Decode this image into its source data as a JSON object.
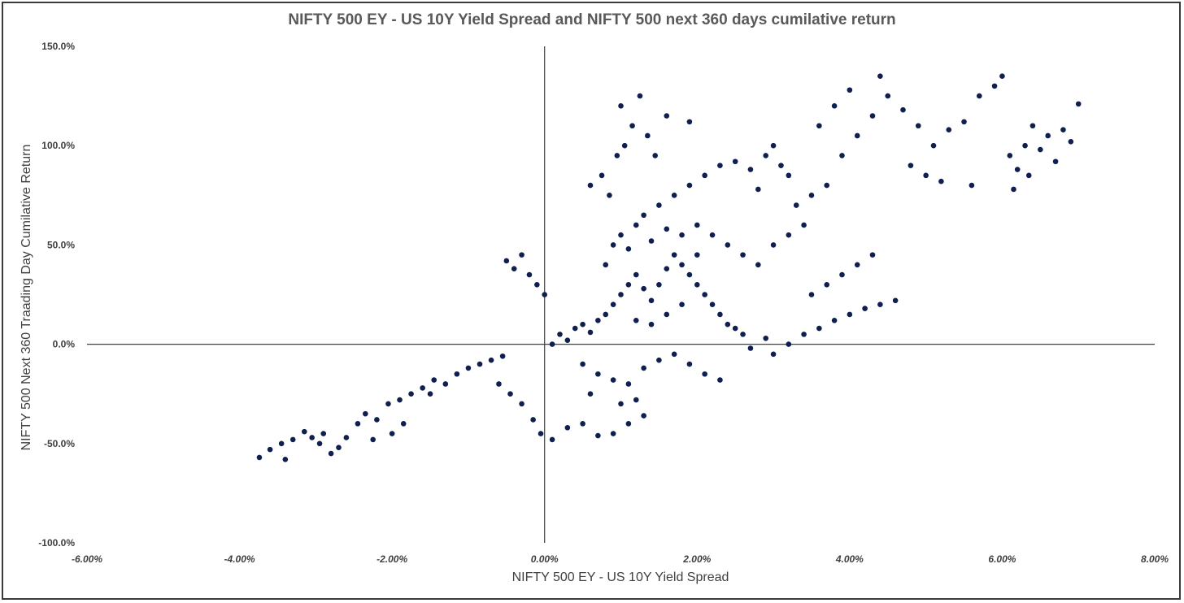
{
  "chart_data": {
    "type": "scatter",
    "title": "NIFTY 500 EY - US 10Y Yield Spread and NIFTY 500 next 360 days cumilative return",
    "xlabel": "NIFTY 500 EY - US 10Y Yield Spread",
    "ylabel": "NIFTY 500 Next 360 Traading Day Cumilative Return",
    "xlim": [
      -6,
      8
    ],
    "ylim": [
      -100,
      150
    ],
    "x_ticks": [
      "-6.00%",
      "-4.00%",
      "-2.00%",
      "0.00%",
      "2.00%",
      "4.00%",
      "6.00%",
      "8.00%"
    ],
    "y_ticks": [
      "150.0%",
      "100.0%",
      "50.0%",
      "0.0%",
      "-50.0%",
      "-100.0%"
    ],
    "grid": false,
    "legend": "none",
    "marker_color": "#0f1f4f",
    "series": [
      {
        "points": [
          [
            -3.74,
            -57
          ],
          [
            -3.6,
            -53
          ],
          [
            -3.45,
            -50
          ],
          [
            -3.3,
            -48
          ],
          [
            -3.15,
            -44
          ],
          [
            -3.05,
            -47
          ],
          [
            -2.95,
            -50
          ],
          [
            -2.8,
            -55
          ],
          [
            -2.7,
            -52
          ],
          [
            -2.6,
            -47
          ],
          [
            -2.45,
            -40
          ],
          [
            -2.35,
            -35
          ],
          [
            -2.2,
            -38
          ],
          [
            -2.05,
            -30
          ],
          [
            -1.9,
            -28
          ],
          [
            -1.75,
            -25
          ],
          [
            -1.6,
            -22
          ],
          [
            -1.45,
            -18
          ],
          [
            -1.3,
            -20
          ],
          [
            -1.15,
            -15
          ],
          [
            -1.0,
            -12
          ],
          [
            -0.85,
            -10
          ],
          [
            -0.7,
            -8
          ],
          [
            -0.55,
            -6
          ],
          [
            -2.25,
            -48
          ],
          [
            -2.0,
            -45
          ],
          [
            -1.85,
            -40
          ],
          [
            -3.4,
            -58
          ],
          [
            -2.9,
            -45
          ],
          [
            -1.5,
            -25
          ],
          [
            -0.6,
            -20
          ],
          [
            -0.45,
            -25
          ],
          [
            -0.3,
            -30
          ],
          [
            -0.15,
            -38
          ],
          [
            -0.05,
            -45
          ],
          [
            0.1,
            -48
          ],
          [
            0.3,
            -42
          ],
          [
            0.5,
            -40
          ],
          [
            0.7,
            -46
          ],
          [
            0.9,
            -45
          ],
          [
            1.1,
            -40
          ],
          [
            1.3,
            -36
          ],
          [
            -0.5,
            42
          ],
          [
            -0.4,
            38
          ],
          [
            -0.3,
            45
          ],
          [
            -0.2,
            35
          ],
          [
            -0.1,
            30
          ],
          [
            0.0,
            25
          ],
          [
            0.95,
            95
          ],
          [
            1.05,
            100
          ],
          [
            1.15,
            110
          ],
          [
            1.25,
            125
          ],
          [
            1.35,
            105
          ],
          [
            1.45,
            95
          ],
          [
            0.75,
            85
          ],
          [
            0.85,
            75
          ],
          [
            1.6,
            115
          ],
          [
            1.9,
            112
          ],
          [
            0.6,
            80
          ],
          [
            1.0,
            120
          ],
          [
            0.1,
            0
          ],
          [
            0.2,
            5
          ],
          [
            0.3,
            2
          ],
          [
            0.4,
            8
          ],
          [
            0.5,
            10
          ],
          [
            0.6,
            6
          ],
          [
            0.7,
            12
          ],
          [
            0.8,
            15
          ],
          [
            0.9,
            20
          ],
          [
            1.0,
            25
          ],
          [
            1.1,
            30
          ],
          [
            1.2,
            35
          ],
          [
            1.3,
            28
          ],
          [
            1.4,
            22
          ],
          [
            1.5,
            30
          ],
          [
            1.6,
            38
          ],
          [
            1.7,
            45
          ],
          [
            1.8,
            40
          ],
          [
            1.9,
            35
          ],
          [
            2.0,
            30
          ],
          [
            2.1,
            25
          ],
          [
            2.2,
            20
          ],
          [
            2.3,
            15
          ],
          [
            2.4,
            10
          ],
          [
            2.5,
            8
          ],
          [
            2.6,
            5
          ],
          [
            1.2,
            60
          ],
          [
            1.3,
            65
          ],
          [
            1.5,
            70
          ],
          [
            1.7,
            75
          ],
          [
            1.9,
            80
          ],
          [
            2.1,
            85
          ],
          [
            2.3,
            90
          ],
          [
            2.5,
            92
          ],
          [
            2.7,
            88
          ],
          [
            2.9,
            95
          ],
          [
            3.1,
            90
          ],
          [
            0.8,
            40
          ],
          [
            0.9,
            50
          ],
          [
            1.0,
            55
          ],
          [
            1.1,
            48
          ],
          [
            1.4,
            52
          ],
          [
            1.6,
            58
          ],
          [
            1.8,
            55
          ],
          [
            2.0,
            60
          ],
          [
            2.2,
            55
          ],
          [
            2.4,
            50
          ],
          [
            2.6,
            45
          ],
          [
            2.8,
            40
          ],
          [
            3.0,
            50
          ],
          [
            3.2,
            55
          ],
          [
            3.4,
            60
          ],
          [
            0.5,
            -10
          ],
          [
            0.7,
            -15
          ],
          [
            0.9,
            -18
          ],
          [
            1.1,
            -20
          ],
          [
            1.3,
            -12
          ],
          [
            1.5,
            -8
          ],
          [
            1.7,
            -5
          ],
          [
            1.9,
            -10
          ],
          [
            2.1,
            -15
          ],
          [
            2.3,
            -18
          ],
          [
            1.0,
            -30
          ],
          [
            1.2,
            -28
          ],
          [
            0.6,
            -25
          ],
          [
            3.0,
            -5
          ],
          [
            3.2,
            0
          ],
          [
            3.4,
            5
          ],
          [
            3.6,
            8
          ],
          [
            3.8,
            12
          ],
          [
            4.0,
            15
          ],
          [
            4.2,
            18
          ],
          [
            4.4,
            20
          ],
          [
            4.6,
            22
          ],
          [
            3.5,
            25
          ],
          [
            3.7,
            30
          ],
          [
            3.9,
            35
          ],
          [
            4.1,
            40
          ],
          [
            4.3,
            45
          ],
          [
            3.3,
            70
          ],
          [
            3.5,
            75
          ],
          [
            3.7,
            80
          ],
          [
            3.9,
            95
          ],
          [
            4.1,
            105
          ],
          [
            4.3,
            115
          ],
          [
            4.5,
            125
          ],
          [
            3.6,
            110
          ],
          [
            3.8,
            120
          ],
          [
            4.0,
            128
          ],
          [
            4.4,
            135
          ],
          [
            4.7,
            118
          ],
          [
            4.9,
            110
          ],
          [
            5.1,
            100
          ],
          [
            5.3,
            108
          ],
          [
            5.5,
            112
          ],
          [
            5.7,
            125
          ],
          [
            5.9,
            130
          ],
          [
            6.0,
            135
          ],
          [
            4.8,
            90
          ],
          [
            5.0,
            85
          ],
          [
            5.2,
            82
          ],
          [
            5.6,
            80
          ],
          [
            6.1,
            95
          ],
          [
            6.2,
            88
          ],
          [
            6.3,
            100
          ],
          [
            6.4,
            110
          ],
          [
            6.5,
            98
          ],
          [
            6.6,
            105
          ],
          [
            6.7,
            92
          ],
          [
            6.8,
            108
          ],
          [
            6.9,
            102
          ],
          [
            7.0,
            121
          ],
          [
            6.15,
            78
          ],
          [
            6.35,
            85
          ],
          [
            3.0,
            100
          ],
          [
            3.2,
            85
          ],
          [
            2.8,
            78
          ],
          [
            2.0,
            45
          ],
          [
            1.8,
            20
          ],
          [
            1.6,
            15
          ],
          [
            1.4,
            10
          ],
          [
            1.2,
            12
          ],
          [
            2.7,
            -2
          ],
          [
            2.9,
            3
          ]
        ]
      }
    ]
  }
}
